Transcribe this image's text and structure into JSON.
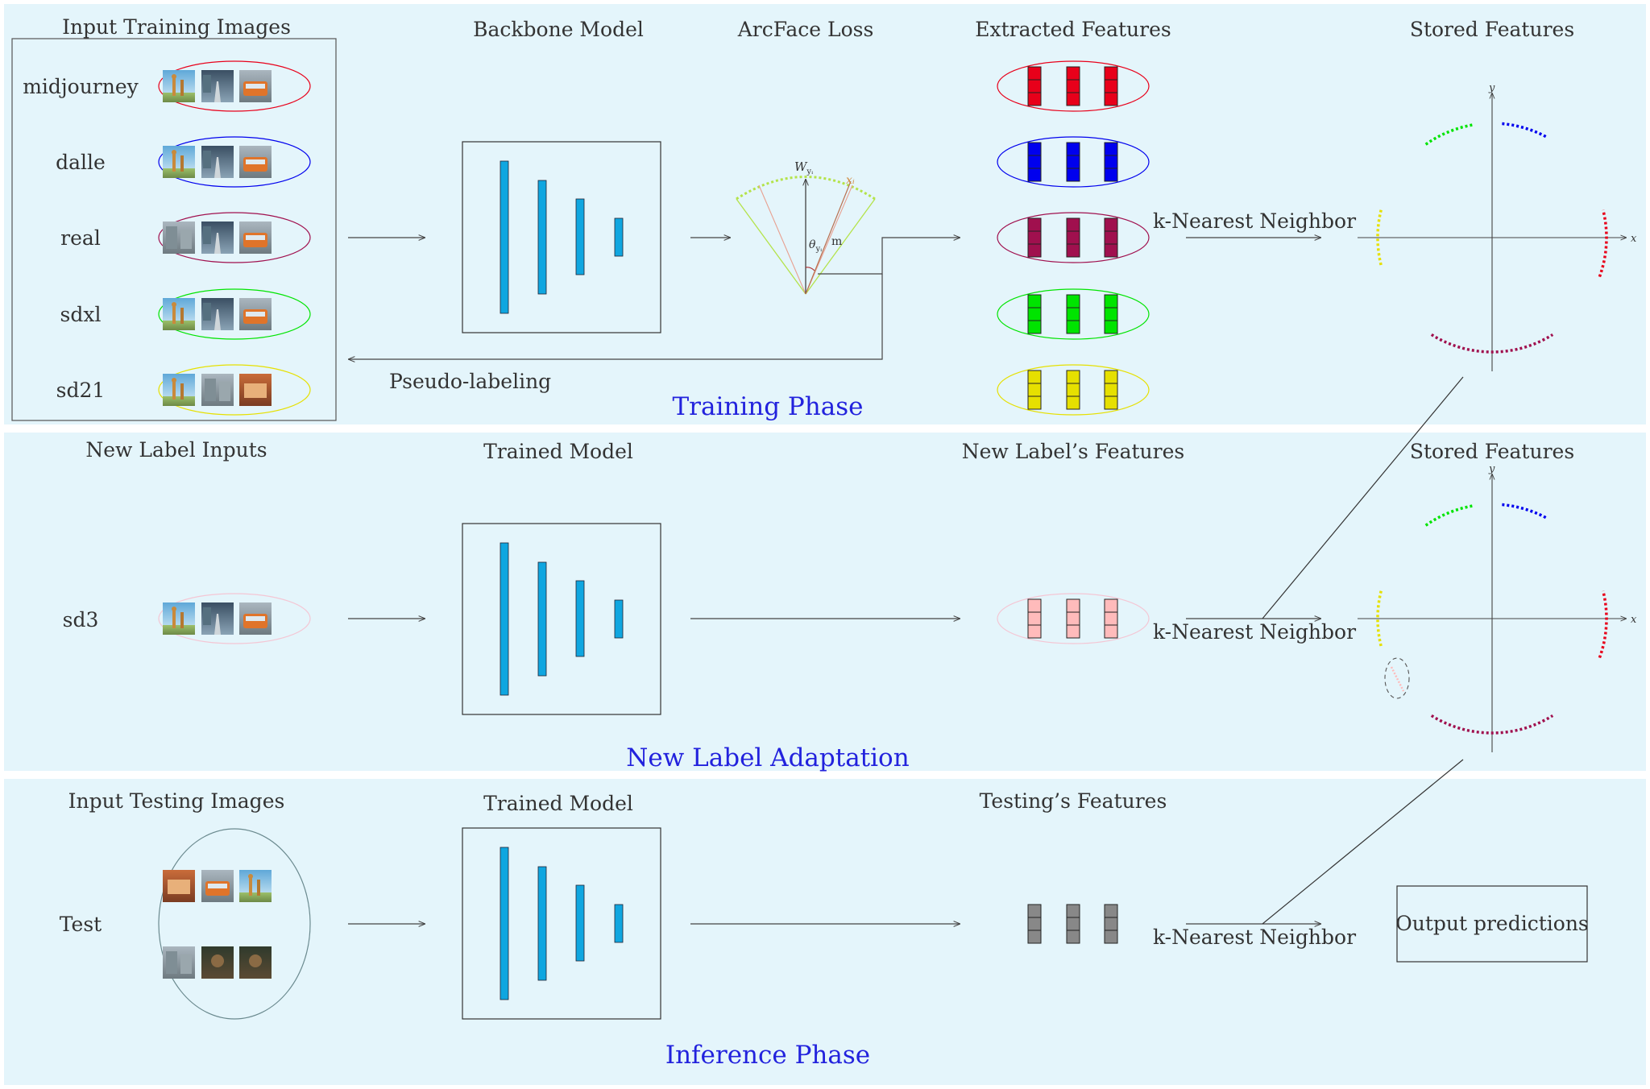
{
  "colors": {
    "panel_bg": "#e4f5fb",
    "block_fill": "#0fa6e0",
    "phase_text": "#2222dd",
    "midjourney": "#e8001a",
    "dalle": "#0000ee",
    "real": "#a0104e",
    "sdxl": "#00e400",
    "sd21": "#e6e000",
    "sd3": "#ffbbbb",
    "test": "#888888"
  },
  "training": {
    "input_title": "Input Training Images",
    "classes": [
      {
        "name": "midjourney",
        "color": "#e8001a"
      },
      {
        "name": "dalle",
        "color": "#0000ee"
      },
      {
        "name": "real",
        "color": "#a0104e"
      },
      {
        "name": "sdxl",
        "color": "#00e400"
      },
      {
        "name": "sd21",
        "color": "#e6e000"
      }
    ],
    "backbone_title": "Backbone Model",
    "arcface_title": "ArcFace Loss",
    "arcface_w": "W",
    "arcface_w_sub": "yᵢ",
    "arcface_x": "xᵢ",
    "arcface_theta": "θ",
    "arcface_theta_sub": "yᵢ",
    "arcface_m": "m",
    "features_title": "Extracted Features",
    "knn_label": "k-Nearest Neighbor",
    "stored_title": "Stored Features",
    "pseudo_label": "Pseudo-labeling",
    "phase_label": "Training Phase"
  },
  "adaptation": {
    "input_title": "New Label Inputs",
    "class_name": "sd3",
    "model_title": "Trained Model",
    "features_title": "New Label’s Features",
    "knn_label": "k-Nearest Neighbor",
    "stored_title": "Stored Features",
    "phase_label": "New Label Adaptation"
  },
  "inference": {
    "input_title": "Input Testing Images",
    "class_name": "Test",
    "model_title": "Trained Model",
    "features_title": "Testing’s Features",
    "knn_label": "k-Nearest Neighbor",
    "output_label": "Output predictions",
    "phase_label": "Inference Phase"
  },
  "axes": {
    "x": "x",
    "y": "y"
  }
}
